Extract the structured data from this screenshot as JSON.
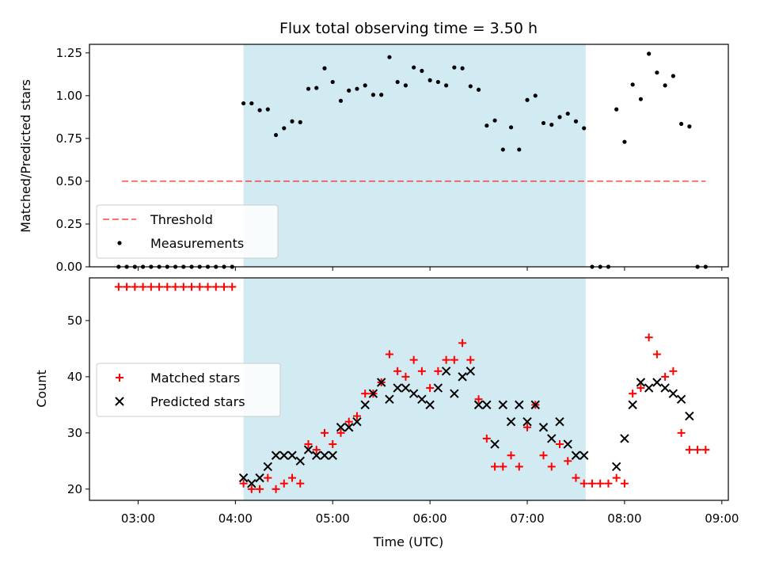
{
  "title": "Flux total observing time = 3.50 h",
  "colors": {
    "shade": "#ADD8E6",
    "threshold": "#FF0000",
    "measurement": "#000000",
    "matched": "#FF0000",
    "predicted": "#000000"
  },
  "chart_data": [
    {
      "type": "scatter",
      "panel": "top",
      "ylabel": "Matched/Predicted stars",
      "xlim": [
        "02:30",
        "09:04"
      ],
      "ylim": [
        0,
        1.3
      ],
      "yticks": [
        "0.00",
        "0.25",
        "0.50",
        "0.75",
        "1.00",
        "1.25"
      ],
      "grid": false,
      "legend_location": "lower-left",
      "shaded_interval": [
        "04:05",
        "07:36"
      ],
      "threshold": {
        "name": "Threshold",
        "y": 0.5,
        "x_range": [
          "02:50",
          "08:50"
        ],
        "style": "dashed"
      },
      "series": [
        {
          "name": "Measurements",
          "points": [
            [
              "02:48",
              0
            ],
            [
              "02:53",
              0
            ],
            [
              "02:58",
              0
            ],
            [
              "03:03",
              0
            ],
            [
              "03:08",
              0
            ],
            [
              "03:13",
              0
            ],
            [
              "03:18",
              0
            ],
            [
              "03:23",
              0
            ],
            [
              "03:28",
              0
            ],
            [
              "03:33",
              0
            ],
            [
              "03:38",
              0
            ],
            [
              "03:43",
              0
            ],
            [
              "03:48",
              0
            ],
            [
              "03:53",
              0
            ],
            [
              "03:58",
              0
            ],
            [
              "04:05",
              0.955
            ],
            [
              "04:10",
              0.955
            ],
            [
              "04:15",
              0.915
            ],
            [
              "04:20",
              0.92
            ],
            [
              "04:25",
              0.77
            ],
            [
              "04:30",
              0.81
            ],
            [
              "04:35",
              0.85
            ],
            [
              "04:40",
              0.845
            ],
            [
              "04:45",
              1.04
            ],
            [
              "04:50",
              1.045
            ],
            [
              "04:55",
              1.16
            ],
            [
              "05:00",
              1.08
            ],
            [
              "05:05",
              0.97
            ],
            [
              "05:10",
              1.03
            ],
            [
              "05:15",
              1.04
            ],
            [
              "05:20",
              1.06
            ],
            [
              "05:25",
              1.005
            ],
            [
              "05:30",
              1.005
            ],
            [
              "05:35",
              1.225
            ],
            [
              "05:40",
              1.08
            ],
            [
              "05:45",
              1.06
            ],
            [
              "05:50",
              1.165
            ],
            [
              "05:55",
              1.145
            ],
            [
              "06:00",
              1.09
            ],
            [
              "06:05",
              1.08
            ],
            [
              "06:10",
              1.06
            ],
            [
              "06:15",
              1.165
            ],
            [
              "06:20",
              1.16
            ],
            [
              "06:25",
              1.055
            ],
            [
              "06:30",
              1.035
            ],
            [
              "06:35",
              0.825
            ],
            [
              "06:40",
              0.855
            ],
            [
              "06:45",
              0.685
            ],
            [
              "06:50",
              0.815
            ],
            [
              "06:55",
              0.685
            ],
            [
              "07:00",
              0.975
            ],
            [
              "07:05",
              1.0
            ],
            [
              "07:10",
              0.84
            ],
            [
              "07:15",
              0.83
            ],
            [
              "07:20",
              0.875
            ],
            [
              "07:25",
              0.895
            ],
            [
              "07:30",
              0.85
            ],
            [
              "07:35",
              0.81
            ],
            [
              "07:40",
              0
            ],
            [
              "07:45",
              0
            ],
            [
              "07:50",
              0
            ],
            [
              "07:55",
              0.92
            ],
            [
              "08:00",
              0.73
            ],
            [
              "08:05",
              1.065
            ],
            [
              "08:10",
              0.98
            ],
            [
              "08:15",
              1.245
            ],
            [
              "08:20",
              1.135
            ],
            [
              "08:25",
              1.06
            ],
            [
              "08:30",
              1.115
            ],
            [
              "08:35",
              0.835
            ],
            [
              "08:40",
              0.82
            ],
            [
              "08:45",
              0
            ],
            [
              "08:50",
              0
            ]
          ]
        }
      ]
    },
    {
      "type": "scatter",
      "panel": "bottom",
      "xlabel": "Time (UTC)",
      "ylabel": "Count",
      "xlim": [
        "02:30",
        "09:04"
      ],
      "ylim": [
        18,
        57.6
      ],
      "xticks": [
        "03:00",
        "04:00",
        "05:00",
        "06:00",
        "07:00",
        "08:00",
        "09:00"
      ],
      "yticks": [
        "20",
        "30",
        "40",
        "50"
      ],
      "grid": false,
      "legend_location": "center-left",
      "shaded_interval": [
        "04:05",
        "07:36"
      ],
      "series": [
        {
          "name": "Matched stars",
          "marker": "plus",
          "points": [
            [
              "02:48",
              56
            ],
            [
              "02:53",
              56
            ],
            [
              "02:58",
              56
            ],
            [
              "03:03",
              56
            ],
            [
              "03:08",
              56
            ],
            [
              "03:13",
              56
            ],
            [
              "03:18",
              56
            ],
            [
              "03:23",
              56
            ],
            [
              "03:28",
              56
            ],
            [
              "03:33",
              56
            ],
            [
              "03:38",
              56
            ],
            [
              "03:43",
              56
            ],
            [
              "03:48",
              56
            ],
            [
              "03:53",
              56
            ],
            [
              "03:58",
              56
            ],
            [
              "04:05",
              21
            ],
            [
              "04:10",
              20
            ],
            [
              "04:15",
              20
            ],
            [
              "04:20",
              22
            ],
            [
              "04:25",
              20
            ],
            [
              "04:30",
              21
            ],
            [
              "04:35",
              22
            ],
            [
              "04:40",
              21
            ],
            [
              "04:45",
              28
            ],
            [
              "04:50",
              27
            ],
            [
              "04:55",
              30
            ],
            [
              "05:00",
              28
            ],
            [
              "05:05",
              30
            ],
            [
              "05:10",
              32
            ],
            [
              "05:15",
              33
            ],
            [
              "05:20",
              37
            ],
            [
              "05:25",
              37
            ],
            [
              "05:30",
              39
            ],
            [
              "05:35",
              44
            ],
            [
              "05:40",
              41
            ],
            [
              "05:45",
              40
            ],
            [
              "05:50",
              43
            ],
            [
              "05:55",
              41
            ],
            [
              "06:00",
              38
            ],
            [
              "06:05",
              41
            ],
            [
              "06:10",
              43
            ],
            [
              "06:15",
              43
            ],
            [
              "06:20",
              46
            ],
            [
              "06:25",
              43
            ],
            [
              "06:30",
              36
            ],
            [
              "06:35",
              29
            ],
            [
              "06:40",
              24
            ],
            [
              "06:45",
              24
            ],
            [
              "06:50",
              26
            ],
            [
              "06:55",
              24
            ],
            [
              "07:00",
              31
            ],
            [
              "07:05",
              35
            ],
            [
              "07:10",
              26
            ],
            [
              "07:15",
              24
            ],
            [
              "07:20",
              28
            ],
            [
              "07:25",
              25
            ],
            [
              "07:30",
              22
            ],
            [
              "07:35",
              21
            ],
            [
              "07:40",
              21
            ],
            [
              "07:45",
              21
            ],
            [
              "07:50",
              21
            ],
            [
              "07:55",
              22
            ],
            [
              "08:00",
              21
            ],
            [
              "08:05",
              37
            ],
            [
              "08:10",
              38
            ],
            [
              "08:15",
              47
            ],
            [
              "08:20",
              44
            ],
            [
              "08:25",
              40
            ],
            [
              "08:30",
              41
            ],
            [
              "08:35",
              30
            ],
            [
              "08:40",
              27
            ],
            [
              "08:45",
              27
            ],
            [
              "08:50",
              27
            ]
          ]
        },
        {
          "name": "Predicted stars",
          "marker": "x",
          "points": [
            [
              "04:05",
              22
            ],
            [
              "04:10",
              21
            ],
            [
              "04:15",
              22
            ],
            [
              "04:20",
              24
            ],
            [
              "04:25",
              26
            ],
            [
              "04:30",
              26
            ],
            [
              "04:35",
              26
            ],
            [
              "04:40",
              25
            ],
            [
              "04:45",
              27
            ],
            [
              "04:50",
              26
            ],
            [
              "04:55",
              26
            ],
            [
              "05:00",
              26
            ],
            [
              "05:05",
              31
            ],
            [
              "05:10",
              31
            ],
            [
              "05:15",
              32
            ],
            [
              "05:20",
              35
            ],
            [
              "05:25",
              37
            ],
            [
              "05:30",
              39
            ],
            [
              "05:35",
              36
            ],
            [
              "05:40",
              38
            ],
            [
              "05:45",
              38
            ],
            [
              "05:50",
              37
            ],
            [
              "05:55",
              36
            ],
            [
              "06:00",
              35
            ],
            [
              "06:05",
              38
            ],
            [
              "06:10",
              41
            ],
            [
              "06:15",
              37
            ],
            [
              "06:20",
              40
            ],
            [
              "06:25",
              41
            ],
            [
              "06:30",
              35
            ],
            [
              "06:35",
              35
            ],
            [
              "06:40",
              28
            ],
            [
              "06:45",
              35
            ],
            [
              "06:50",
              32
            ],
            [
              "06:55",
              35
            ],
            [
              "07:00",
              32
            ],
            [
              "07:05",
              35
            ],
            [
              "07:10",
              31
            ],
            [
              "07:15",
              29
            ],
            [
              "07:20",
              32
            ],
            [
              "07:25",
              28
            ],
            [
              "07:30",
              26
            ],
            [
              "07:35",
              26
            ],
            [
              "07:55",
              24
            ],
            [
              "08:00",
              29
            ],
            [
              "08:05",
              35
            ],
            [
              "08:10",
              39
            ],
            [
              "08:15",
              38
            ],
            [
              "08:20",
              39
            ],
            [
              "08:25",
              38
            ],
            [
              "08:30",
              37
            ],
            [
              "08:35",
              36
            ],
            [
              "08:40",
              33
            ]
          ]
        }
      ]
    }
  ]
}
